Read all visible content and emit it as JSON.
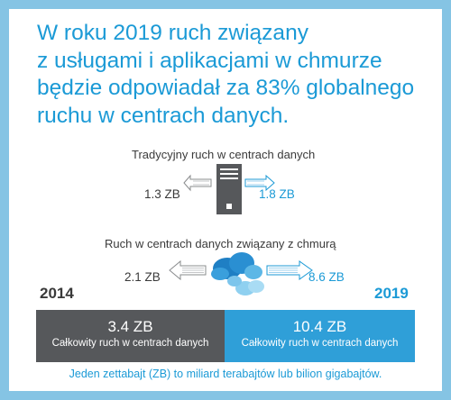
{
  "headline": [
    "W roku 2019 ruch związany",
    "z usługami i aplikacjami w chmurze",
    "będzie odpowiadał za 83% globalnego",
    "ruchu w centrach danych."
  ],
  "traditional": {
    "label": "Tradycyjny ruch w centrach danych",
    "value_2014": "1.3 ZB",
    "value_2019": "1.8 ZB",
    "icon": "server-icon"
  },
  "cloud": {
    "label": "Ruch w centrach danych związany z chmurą",
    "value_2014": "2.1 ZB",
    "value_2019": "8.6 ZB",
    "icon": "cloud-icon"
  },
  "years": {
    "start": "2014",
    "end": "2019"
  },
  "totals": [
    {
      "value": "3.4 ZB",
      "caption": "Całkowity ruch w centrach danych"
    },
    {
      "value": "10.4 ZB",
      "caption": "Całkowity ruch w centrach danych"
    }
  ],
  "footnote": "Jeden zettabajt (ZB) to miliard terabajtów lub bilion gigabajtów.",
  "colors": {
    "frame": "#85c4e4",
    "accent": "#1b9ad6",
    "dark": "#56585b",
    "bar_blue": "#2f9fd8"
  }
}
